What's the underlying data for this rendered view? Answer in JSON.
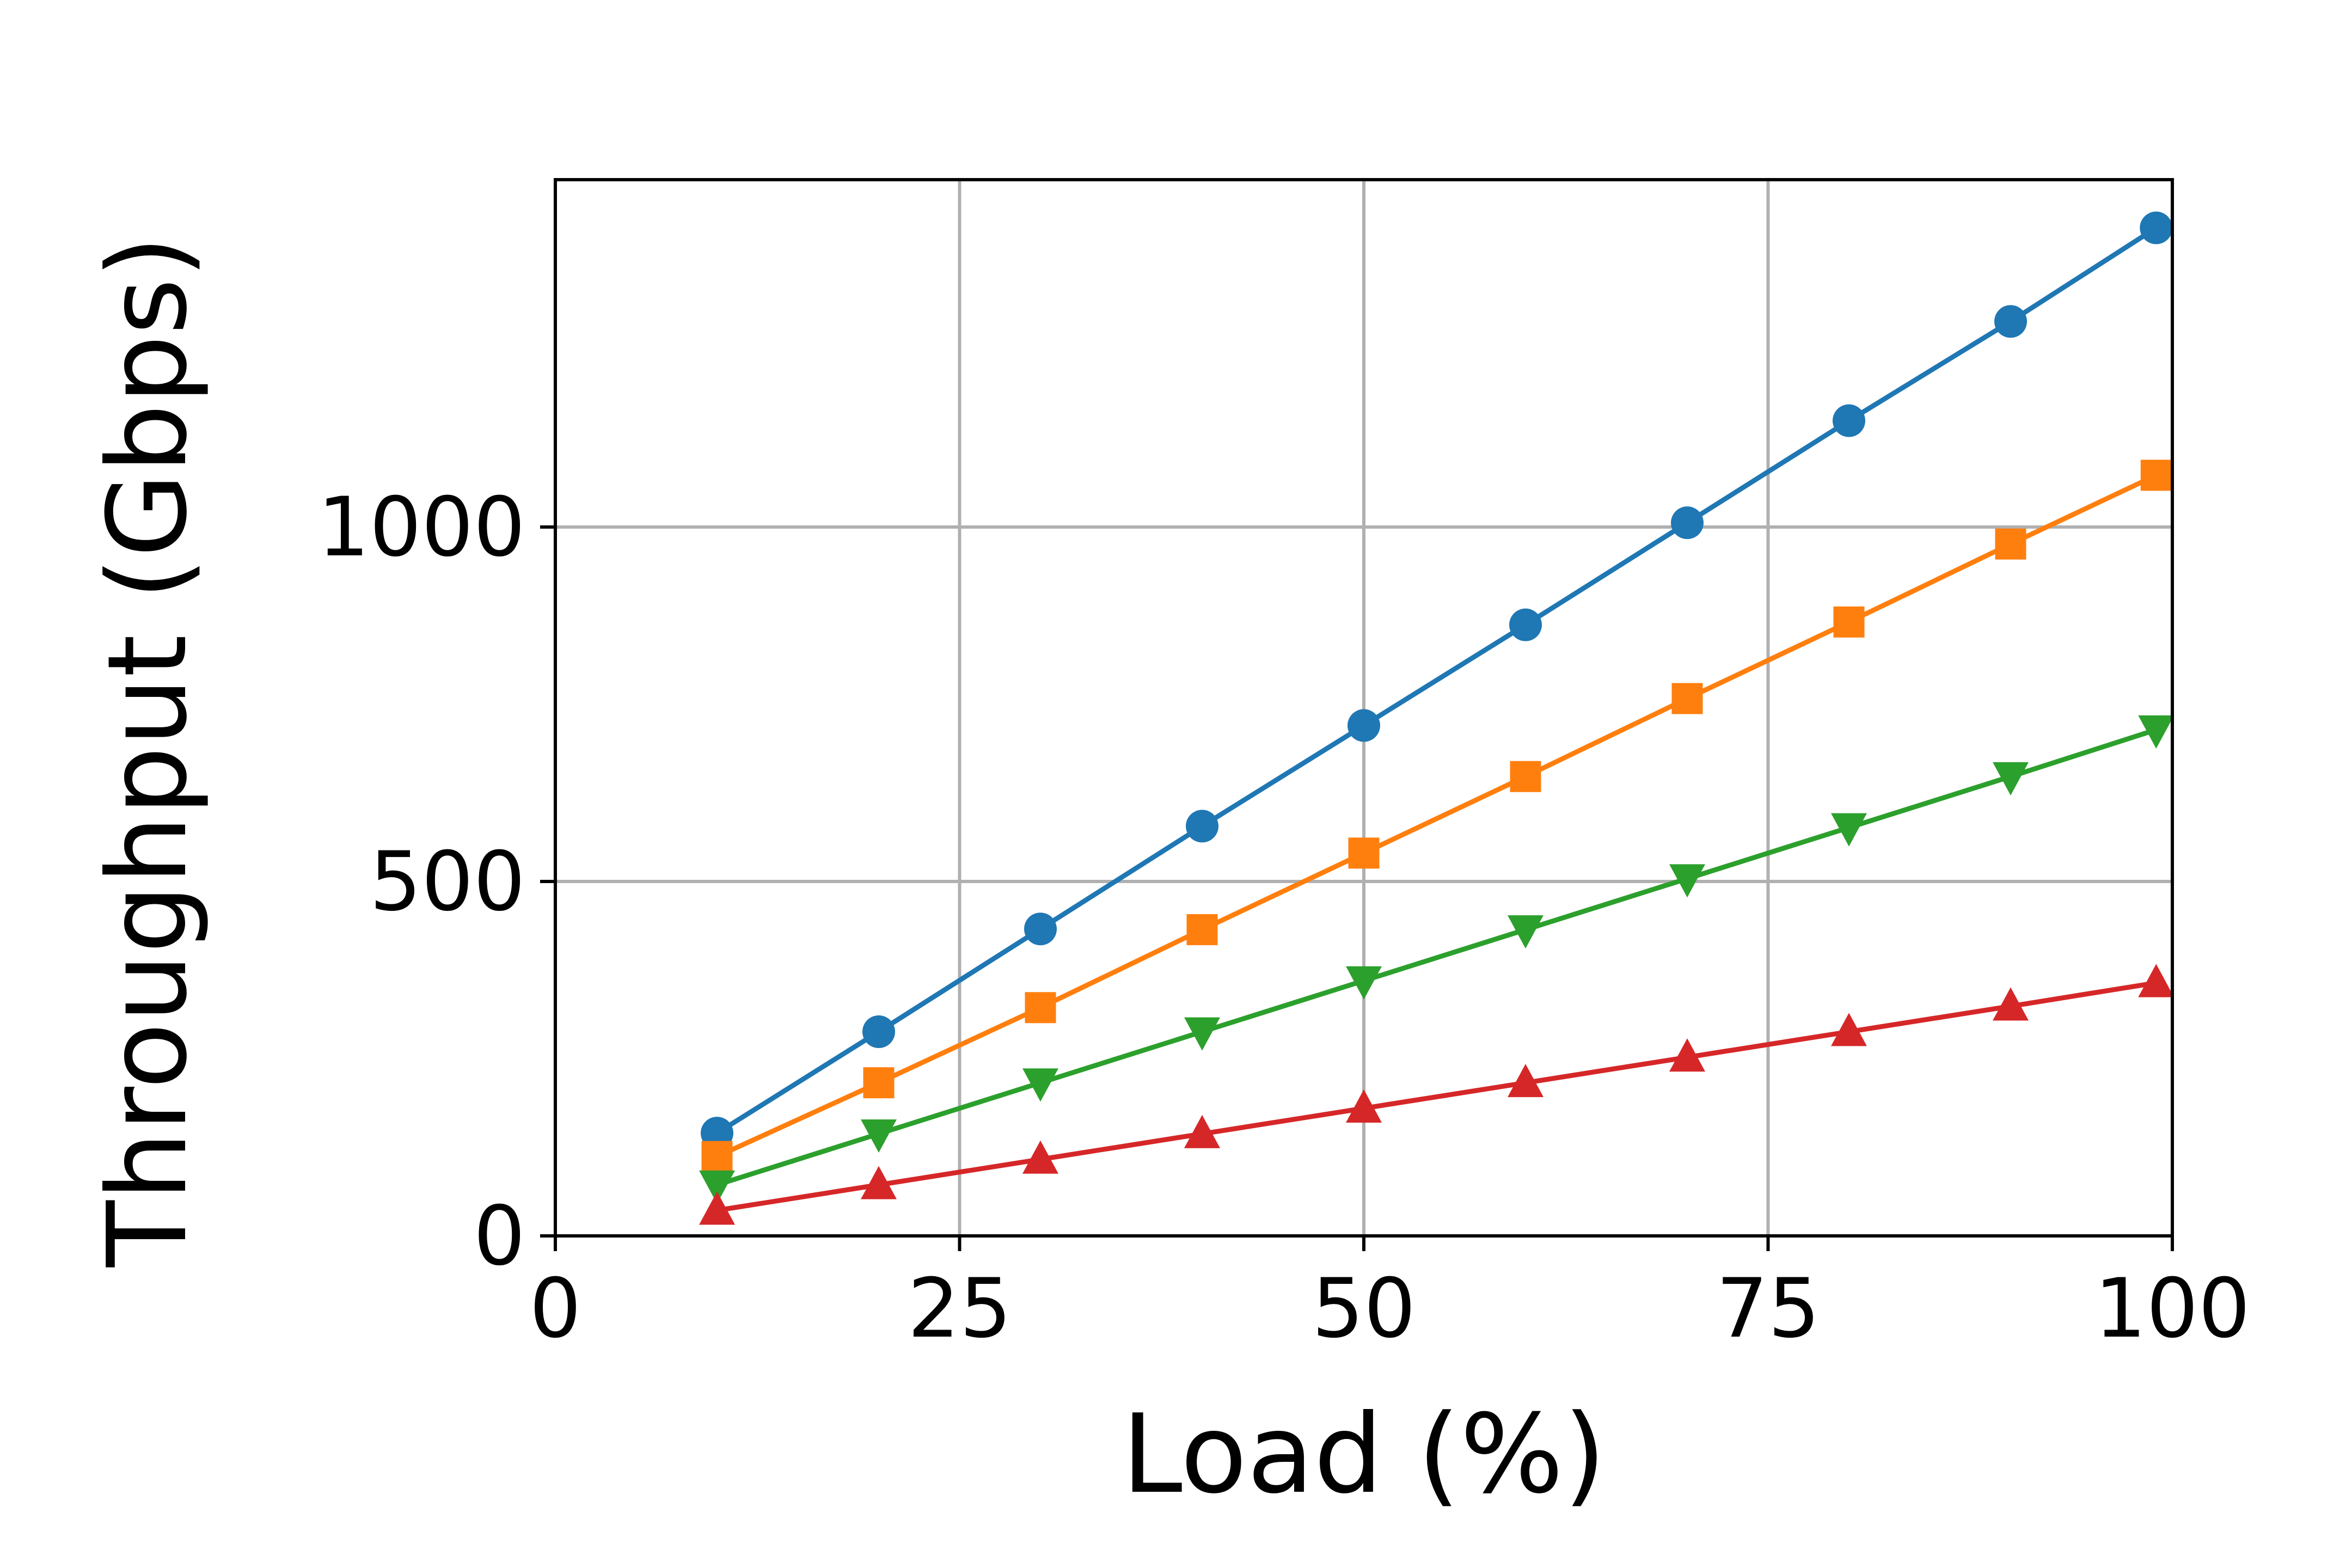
{
  "chart_data": {
    "type": "line",
    "title": "",
    "xlabel": "Load (%)",
    "ylabel": "Throughput (Gbps)",
    "xlim": [
      0,
      100
    ],
    "ylim": [
      0,
      1490
    ],
    "xticks": [
      0,
      25,
      50,
      75,
      100
    ],
    "yticks": [
      0,
      500,
      1000
    ],
    "grid": true,
    "x": [
      10,
      20,
      30,
      40,
      50,
      60,
      70,
      80,
      90,
      99
    ],
    "series": [
      {
        "marker": "circle",
        "color": "#1f77b4",
        "values": [
          145,
          288,
          433,
          578,
          720,
          862,
          1006,
          1150,
          1290,
          1422
        ]
      },
      {
        "marker": "square",
        "color": "#ff7f0e",
        "values": [
          112,
          216,
          322,
          432,
          540,
          648,
          758,
          866,
          976,
          1073
        ]
      },
      {
        "marker": "triangle-down",
        "color": "#2ca02c",
        "values": [
          72,
          144,
          216,
          288,
          360,
          432,
          504,
          576,
          648,
          714
        ]
      },
      {
        "marker": "triangle-up",
        "color": "#d62728",
        "values": [
          36,
          72,
          108,
          144,
          180,
          216,
          252,
          288,
          324,
          357
        ]
      }
    ]
  }
}
